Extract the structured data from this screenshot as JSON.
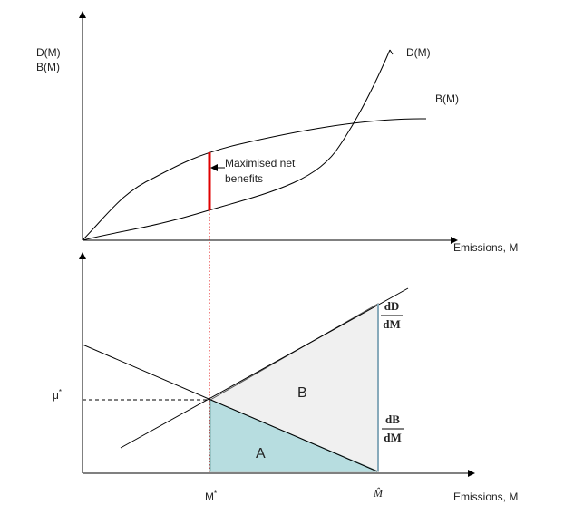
{
  "top_panel": {
    "y_axis_label": [
      "D(M)",
      "B(M)"
    ],
    "x_axis_label": "Emissions, M",
    "damage_curve_label": "D(M)",
    "benefit_curve_label": "B(M)",
    "annotation": [
      "Maximised net",
      "benefits"
    ]
  },
  "bottom_panel": {
    "x_axis_label": "Emissions, M",
    "marginal_damage_label": {
      "numerator": "dD",
      "denominator": "dM"
    },
    "marginal_benefit_label": {
      "numerator": "dB",
      "denominator": "dM"
    },
    "area_b": "B",
    "area_a": "A",
    "price_label": {
      "symbol": "μ",
      "superscript": "*"
    },
    "optimum_label": {
      "symbol": "M",
      "superscript": "*"
    },
    "max_emissions_label": "M̂"
  }
}
